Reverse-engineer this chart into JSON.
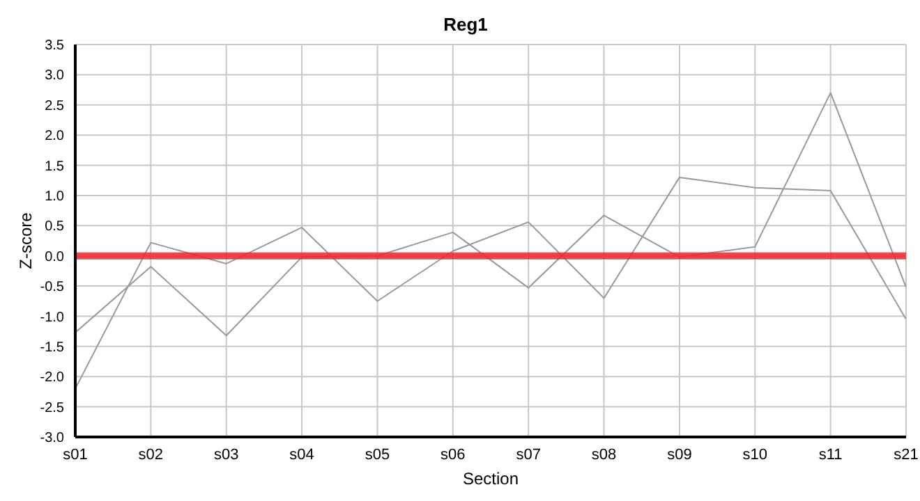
{
  "chart_data": {
    "type": "line",
    "title": "Reg1",
    "xlabel": "Section",
    "ylabel": "Z-score",
    "categories": [
      "s01",
      "s02",
      "s03",
      "s04",
      "s05",
      "s06",
      "s07",
      "s08",
      "s09",
      "s10",
      "s11",
      "s21"
    ],
    "series": [
      {
        "color": "#999999",
        "values": [
          -1.27,
          -0.18,
          -1.32,
          -0.02,
          0.0,
          0.39,
          -0.53,
          0.67,
          -0.02,
          0.15,
          2.7,
          -0.52
        ]
      },
      {
        "color": "#999999",
        "values": [
          -2.2,
          0.22,
          -0.13,
          0.47,
          -0.75,
          0.08,
          0.56,
          -0.7,
          1.3,
          1.13,
          1.08,
          -1.05
        ]
      }
    ],
    "ylim": [
      -3.0,
      3.5
    ],
    "yticks": [
      {
        "value": -3,
        "label": "-3.0"
      },
      {
        "value": -2.5,
        "label": "-2.5"
      },
      {
        "value": -2,
        "label": "-2.0"
      },
      {
        "value": -1.5,
        "label": "-1.5"
      },
      {
        "value": -1,
        "label": "-1.0"
      },
      {
        "value": -0.5,
        "label": "-0.5"
      },
      {
        "value": 0,
        "label": "0.0"
      },
      {
        "value": 0.5,
        "label": "0.5"
      },
      {
        "value": 1,
        "label": "1.0"
      },
      {
        "value": 1.5,
        "label": "1.5"
      },
      {
        "value": 2,
        "label": "2.0"
      },
      {
        "value": 2.5,
        "label": "2.5"
      },
      {
        "value": 3,
        "label": "3.0"
      },
      {
        "value": 3.5,
        "label": "3.5"
      }
    ],
    "ref_lines": [
      {
        "axis": "y",
        "value": 0,
        "color": "#e8262b"
      }
    ],
    "grid": true,
    "legend": false,
    "marker": "none",
    "line_style": "solid"
  }
}
